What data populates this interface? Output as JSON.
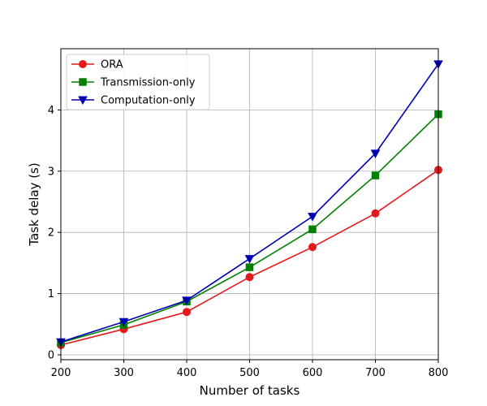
{
  "chart_data": {
    "type": "line",
    "title": "",
    "xlabel": "Number of tasks",
    "ylabel": "Task delay (s)",
    "xlim": [
      200,
      800
    ],
    "ylim": [
      -0.08,
      5.0
    ],
    "x": [
      200,
      300,
      400,
      500,
      600,
      700,
      800
    ],
    "x_ticks": [
      "200",
      "300",
      "400",
      "500",
      "600",
      "700",
      "800"
    ],
    "y_ticks": [
      "0",
      "1",
      "2",
      "3",
      "4"
    ],
    "grid": true,
    "legend_position": "top-left",
    "series": [
      {
        "name": "ORA",
        "color": "#e31a1c",
        "marker": "circle",
        "values": [
          0.16,
          0.42,
          0.7,
          1.27,
          1.76,
          2.31,
          3.02
        ]
      },
      {
        "name": "Transmission-only",
        "color": "#008000",
        "marker": "square",
        "values": [
          0.2,
          0.49,
          0.87,
          1.43,
          2.05,
          2.93,
          3.93
        ]
      },
      {
        "name": "Computation-only",
        "color": "#0000b3",
        "marker": "triangle-down",
        "values": [
          0.21,
          0.54,
          0.89,
          1.57,
          2.26,
          3.29,
          4.75
        ]
      }
    ]
  }
}
